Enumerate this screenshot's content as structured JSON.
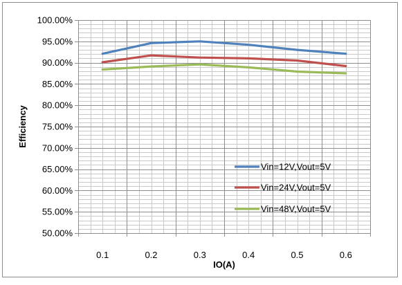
{
  "chart_data": {
    "type": "line",
    "title": "",
    "xlabel": "IO(A)",
    "ylabel": "Efficiency",
    "x": [
      0.1,
      0.2,
      0.3,
      0.4,
      0.5,
      0.6
    ],
    "x_tick_labels": [
      "0.1",
      "0.2",
      "0.3",
      "0.4",
      "0.5",
      "0.6"
    ],
    "ylim": [
      0.5,
      1.0
    ],
    "y_tick_values": [
      0.5,
      0.55,
      0.6,
      0.65,
      0.7,
      0.75,
      0.8,
      0.85,
      0.9,
      0.95,
      1.0
    ],
    "y_tick_labels": [
      "50.00%",
      "55.00%",
      "60.00%",
      "65.00%",
      "70.00%",
      "75.00%",
      "80.00%",
      "85.00%",
      "90.00%",
      "95.00%",
      "100.00%"
    ],
    "grid": true,
    "legend_position": "lower-right",
    "series": [
      {
        "name": "Vin=12V,Vout=5V",
        "color": "#4f81bd",
        "values": [
          0.921,
          0.946,
          0.95,
          0.942,
          0.93,
          0.921
        ]
      },
      {
        "name": "Vin=24V,Vout=5V",
        "color": "#c0504d",
        "values": [
          0.901,
          0.917,
          0.912,
          0.91,
          0.905,
          0.892
        ]
      },
      {
        "name": "Vin=48V,Vout=5V",
        "color": "#9bbb59",
        "values": [
          0.884,
          0.891,
          0.896,
          0.889,
          0.879,
          0.875
        ]
      }
    ]
  }
}
